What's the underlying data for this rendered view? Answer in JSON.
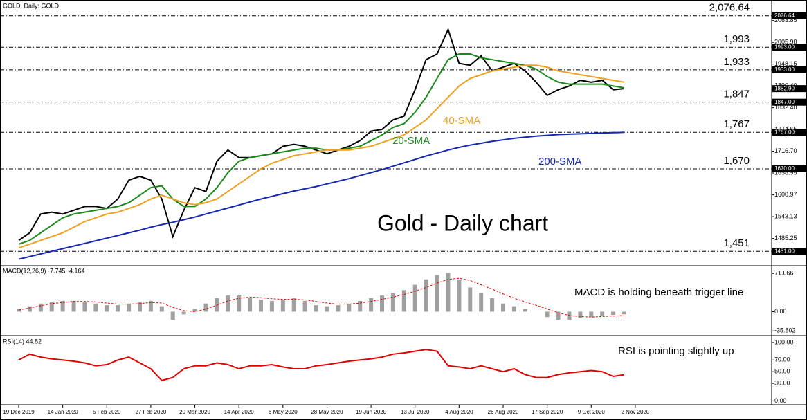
{
  "chart_data": [
    {
      "type": "line",
      "title": "GOLD, Daily:  GOLD",
      "categories": [
        "19 Dec 2019",
        null,
        null,
        null,
        "14 Jan 2020",
        null,
        null,
        null,
        "5 Feb 2020",
        null,
        null,
        null,
        "27 Feb 2020",
        null,
        null,
        null,
        "20 Mar 2020",
        null,
        null,
        null,
        "14 Apr 2020",
        null,
        null,
        null,
        "6 May 2020",
        null,
        null,
        null,
        "28 May 2020",
        null,
        null,
        null,
        "19 Jun 2020",
        null,
        null,
        null,
        "13 Jul 2020",
        null,
        null,
        null,
        "4 Aug 2020",
        null,
        null,
        null,
        "26 Aug 2020",
        null,
        null,
        null,
        "17 Sep 2020",
        null,
        null,
        null,
        "9 Oct 2020",
        null,
        null,
        null,
        "2 Nov 2020"
      ],
      "series": [
        {
          "color": "#000000",
          "values": [
            1480,
            1500,
            1550,
            1555,
            1550,
            1560,
            1570,
            1570,
            1565,
            1590,
            1640,
            1650,
            1640,
            1590,
            1490,
            1560,
            1620,
            1610,
            1690,
            1720,
            1700,
            1700,
            1705,
            1710,
            1730,
            1735,
            1730,
            1720,
            1710,
            1720,
            1730,
            1745,
            1770,
            1775,
            1800,
            1810,
            1880,
            1960,
            1975,
            2040,
            1950,
            1945,
            1970,
            1930,
            1940,
            1950,
            1930,
            1900,
            1865,
            1880,
            1890,
            1905,
            1900,
            1905,
            1880,
            1882.9,
            null
          ]
        },
        {
          "color": "#1a8a1a",
          "values": [
            1470,
            1480,
            1500,
            1520,
            1540,
            1550,
            1555,
            1560,
            1565,
            1570,
            1580,
            1600,
            1620,
            1625,
            1590,
            1570,
            1570,
            1590,
            1620,
            1660,
            1690,
            1700,
            1705,
            1710,
            1715,
            1720,
            1725,
            1725,
            1720,
            1720,
            1725,
            1730,
            1745,
            1760,
            1780,
            1790,
            1820,
            1860,
            1910,
            1960,
            1975,
            1975,
            1965,
            1960,
            1955,
            1950,
            1945,
            1935,
            1915,
            1900,
            1895,
            1895,
            1895,
            1895,
            1890,
            1885,
            null
          ]
        },
        {
          "color": "#f0a020",
          "values": [
            1460,
            1470,
            1480,
            1490,
            1500,
            1515,
            1530,
            1540,
            1550,
            1555,
            1565,
            1575,
            1590,
            1600,
            1590,
            1580,
            1575,
            1580,
            1590,
            1610,
            1630,
            1650,
            1670,
            1685,
            1695,
            1705,
            1710,
            1715,
            1720,
            1720,
            1720,
            1725,
            1730,
            1740,
            1750,
            1760,
            1780,
            1800,
            1830,
            1860,
            1890,
            1910,
            1920,
            1930,
            1935,
            1940,
            1945,
            1945,
            1940,
            1930,
            1925,
            1920,
            1915,
            1910,
            1905,
            1900,
            null
          ]
        },
        {
          "color": "#1428b4",
          "values": [
            1430,
            1437,
            1444,
            1451,
            1458,
            1465,
            1472,
            1479,
            1486,
            1493,
            1500,
            1507,
            1515,
            1522,
            1528,
            1535,
            1542,
            1550,
            1558,
            1566,
            1574,
            1582,
            1590,
            1597,
            1604,
            1611,
            1617,
            1623,
            1630,
            1637,
            1644,
            1652,
            1660,
            1668,
            1677,
            1686,
            1695,
            1704,
            1712,
            1720,
            1727,
            1733,
            1738,
            1743,
            1747,
            1751,
            1754,
            1757,
            1759,
            1761,
            1762,
            1763,
            1764,
            1765,
            1766,
            1767,
            null
          ]
        }
      ],
      "ylim": [
        1422,
        2111
      ],
      "yticks": [
        2063.85,
        {
          "value": 2005.9,
          "label": "2005.90"
        },
        1948.15,
        {
          "value": 1890.4,
          "label": "1890.40"
        },
        {
          "value": 1832.4,
          "label": "1832.40"
        },
        1774.65,
        {
          "value": 1716.7,
          "label": "1716.70"
        },
        1658.95,
        1600.97,
        1543.13,
        1485.25
      ],
      "levels": [
        {
          "value": 2076.64,
          "label": "2,076.64",
          "axis_label": "2076.64",
          "color": "#ff0000"
        },
        {
          "value": 1993,
          "label": "1,993",
          "axis_label": "1993.00",
          "color": "#ff0000"
        },
        {
          "value": 1933,
          "label": "1,933",
          "axis_label": "1933.00",
          "color": "#ff0000"
        },
        {
          "value": 1847,
          "label": "1,847",
          "axis_label": "1847.00",
          "color": "#1a8a1a"
        },
        {
          "value": 1767,
          "label": "1,767",
          "axis_label": "1767.00",
          "color": "#1a8a1a"
        },
        {
          "value": 1670,
          "label": "1,670",
          "axis_label": "1670.00",
          "color": "#1a8a1a"
        },
        {
          "value": 1451,
          "label": "1,451",
          "axis_label": "1451.00",
          "color": "#1a8a1a"
        }
      ],
      "last_price": {
        "value": 1882.9,
        "label": "1882.90"
      },
      "annotations": [
        {
          "text": "20-SMA",
          "color": "#1a8a1a"
        },
        {
          "text": "40-SMA",
          "color": "#f0a020"
        },
        {
          "text": "200-SMA",
          "color": "#1428b4"
        },
        {
          "text": "Gold - Daily chart",
          "color": "#000000"
        }
      ]
    },
    {
      "type": "bar",
      "title": "MACD(12,26,9) -7.745 -4.164",
      "annotation": "MACD is holding beneath trigger line",
      "series": [
        {
          "color": "#a0a0a0",
          "values": [
            5,
            10,
            15,
            18,
            20,
            20,
            18,
            15,
            12,
            12,
            15,
            18,
            20,
            10,
            -15,
            -5,
            5,
            15,
            25,
            30,
            30,
            25,
            22,
            20,
            22,
            25,
            20,
            12,
            10,
            12,
            15,
            20,
            25,
            30,
            35,
            40,
            50,
            60,
            68,
            72,
            60,
            45,
            35,
            25,
            15,
            10,
            5,
            0,
            -10,
            -15,
            -15,
            -12,
            -10,
            -8,
            -6,
            -5,
            null
          ]
        },
        {
          "color": "#e00000",
          "style": "dashed",
          "values": [
            3,
            7,
            11,
            15,
            17,
            19,
            19,
            18,
            16,
            14,
            14,
            15,
            17,
            16,
            8,
            2,
            0,
            5,
            12,
            20,
            25,
            27,
            26,
            24,
            23,
            23,
            22,
            19,
            16,
            14,
            14,
            16,
            19,
            23,
            27,
            32,
            38,
            45,
            53,
            60,
            62,
            58,
            50,
            42,
            33,
            25,
            18,
            12,
            5,
            -2,
            -7,
            -9,
            -10,
            -9,
            -8,
            -7,
            null
          ]
        }
      ],
      "ylim": [
        -38,
        79
      ],
      "yticks": [
        71.066,
        {
          "value": 0,
          "label": "0.00"
        },
        -35.802
      ]
    },
    {
      "type": "line",
      "title": "RSI(14) 44.82",
      "annotation": "RSI is pointing slightly up",
      "series": [
        {
          "color": "#e00000",
          "values": [
            70,
            80,
            75,
            72,
            70,
            68,
            65,
            60,
            62,
            70,
            75,
            65,
            55,
            35,
            40,
            55,
            60,
            60,
            65,
            62,
            55,
            60,
            60,
            62,
            58,
            55,
            55,
            60,
            62,
            65,
            68,
            70,
            72,
            75,
            80,
            82,
            85,
            88,
            85,
            60,
            58,
            55,
            60,
            55,
            50,
            55,
            45,
            40,
            40,
            45,
            48,
            50,
            52,
            50,
            42,
            44.82,
            null
          ]
        }
      ],
      "ylim": [
        -3,
        107
      ],
      "yticks": [
        {
          "value": 100,
          "label": "100.00"
        },
        {
          "value": 70,
          "label": "70.00"
        },
        {
          "value": 50,
          "label": "50.00"
        },
        {
          "value": 30,
          "label": "30.00"
        },
        {
          "value": 0,
          "label": "0.00"
        }
      ]
    }
  ]
}
